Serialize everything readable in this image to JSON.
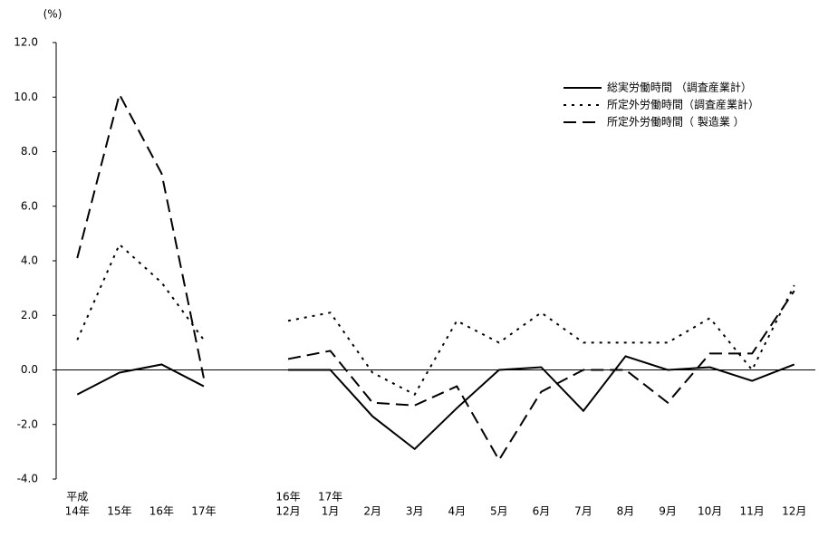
{
  "chart_data": {
    "type": "line",
    "y_label": "(%)",
    "categories": [
      [
        "平成",
        "14年"
      ],
      [
        null,
        "15年"
      ],
      [
        null,
        "16年"
      ],
      [
        null,
        "17年"
      ],
      null,
      [
        "16年",
        "12月"
      ],
      [
        "17年",
        "1月"
      ],
      [
        null,
        "2月"
      ],
      [
        null,
        "3月"
      ],
      [
        null,
        "4月"
      ],
      [
        null,
        "5月"
      ],
      [
        null,
        "6月"
      ],
      [
        null,
        "7月"
      ],
      [
        null,
        "8月"
      ],
      [
        null,
        "9月"
      ],
      [
        null,
        "10月"
      ],
      [
        null,
        "11月"
      ],
      [
        null,
        "12月"
      ]
    ],
    "series": [
      {
        "name": "総実労働時間 （調査産業計）",
        "color": "#000000",
        "dash": "solid",
        "values": [
          -0.9,
          -0.1,
          0.2,
          -0.6,
          null,
          0.0,
          0.0,
          -1.7,
          -2.9,
          -1.4,
          0.0,
          0.1,
          -1.5,
          0.5,
          0.0,
          0.1,
          -0.4,
          0.2
        ]
      },
      {
        "name": "所定外労働時間（調査産業計）",
        "color": "#000000",
        "dash": "dotted",
        "values": [
          1.1,
          4.6,
          3.2,
          1.1,
          null,
          1.8,
          2.1,
          -0.1,
          -0.9,
          1.8,
          1.0,
          2.1,
          1.0,
          1.0,
          1.0,
          1.9,
          0.0,
          3.1
        ]
      },
      {
        "name": "所定外労働時間（ 製造業 ）",
        "color": "#000000",
        "dash": "dashed",
        "values": [
          4.1,
          10.1,
          7.2,
          -0.3,
          null,
          0.4,
          0.7,
          -1.2,
          -1.3,
          -0.6,
          -3.3,
          -0.8,
          0.0,
          0.0,
          -1.2,
          0.6,
          0.6,
          2.9
        ]
      }
    ],
    "ylim": [
      -4,
      12
    ],
    "yticks": [
      {
        "value": -4,
        "label": "-4.0"
      },
      {
        "value": -2,
        "label": "-2.0"
      },
      {
        "value": 0,
        "label": "0.0"
      },
      {
        "value": 2,
        "label": "2.0"
      },
      {
        "value": 4,
        "label": "4.0"
      },
      {
        "value": 6,
        "label": "6.0"
      },
      {
        "value": 8,
        "label": "8.0"
      },
      {
        "value": 10,
        "label": "10.0"
      },
      {
        "value": 12,
        "label": "12.0"
      }
    ],
    "legend": "top-right"
  }
}
